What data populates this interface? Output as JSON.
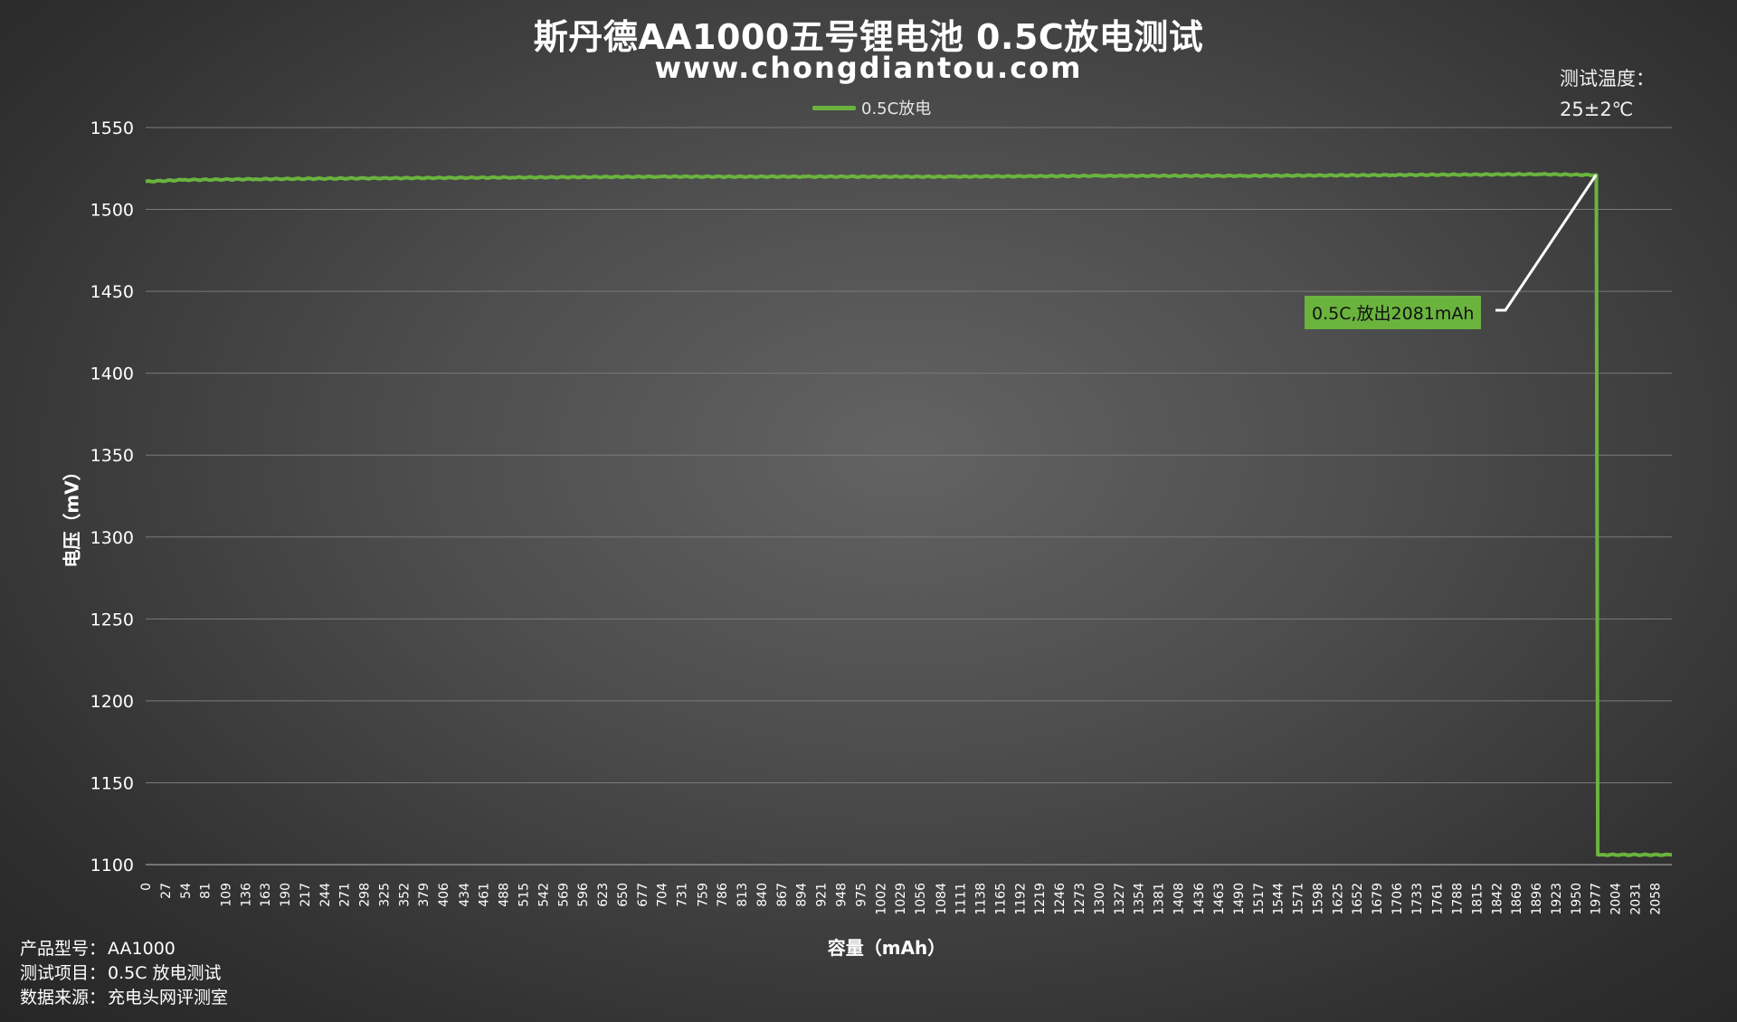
{
  "title": "斯丹德AA1000五号锂电池 0.5C放电测试",
  "subtitle": "www.chongdiantou.com",
  "legend": {
    "label": "0.5C放电",
    "color": "#6ab43e"
  },
  "temperature": {
    "label": "测试温度：",
    "value": "25±2℃"
  },
  "info": [
    {
      "label": "产品型号：",
      "value": "AA1000"
    },
    {
      "label": "测试项目：",
      "value": "0.5C 放电测试"
    },
    {
      "label": "数据来源：",
      "value": "充电头网评测室"
    }
  ],
  "annotation": {
    "text": "0.5C,放出2081mAh"
  },
  "chart_data": {
    "type": "line",
    "title": "斯丹德AA1000五号锂电池 0.5C放电测试",
    "xlabel": "容量（mAh）",
    "ylabel": "电压（mV）",
    "ylim": [
      1100,
      1550
    ],
    "yticks": [
      1100,
      1150,
      1200,
      1250,
      1300,
      1350,
      1400,
      1450,
      1500,
      1550
    ],
    "xlim": [
      0,
      2081
    ],
    "xticks": [
      0,
      27,
      54,
      81,
      109,
      136,
      163,
      190,
      217,
      244,
      271,
      298,
      325,
      352,
      379,
      406,
      434,
      461,
      488,
      515,
      542,
      569,
      596,
      623,
      650,
      677,
      704,
      731,
      759,
      786,
      813,
      840,
      867,
      894,
      921,
      948,
      975,
      1002,
      1029,
      1056,
      1084,
      1111,
      1138,
      1165,
      1192,
      1219,
      1246,
      1273,
      1300,
      1327,
      1354,
      1381,
      1408,
      1436,
      1463,
      1490,
      1517,
      1544,
      1571,
      1598,
      1625,
      1652,
      1679,
      1706,
      1733,
      1761,
      1788,
      1815,
      1842,
      1869,
      1896,
      1923,
      1950,
      1977,
      2004,
      2031,
      2058
    ],
    "grid": true,
    "legend_position": "top-center",
    "series": [
      {
        "name": "0.5C放电",
        "color": "#6ab43e",
        "x": [
          0,
          50,
          150,
          300,
          500,
          700,
          900,
          1100,
          1300,
          1500,
          1700,
          1900,
          1978,
          1980,
          1985,
          2081
        ],
        "y": [
          1517,
          1518,
          1518.5,
          1519,
          1519.5,
          1520,
          1520,
          1520,
          1520.5,
          1520.5,
          1521,
          1521.5,
          1521,
          1106,
          1106,
          1106
        ]
      }
    ],
    "annotations": [
      {
        "text": "0.5C,放出2081mAh",
        "x": 1980,
        "y": 1521
      }
    ]
  }
}
